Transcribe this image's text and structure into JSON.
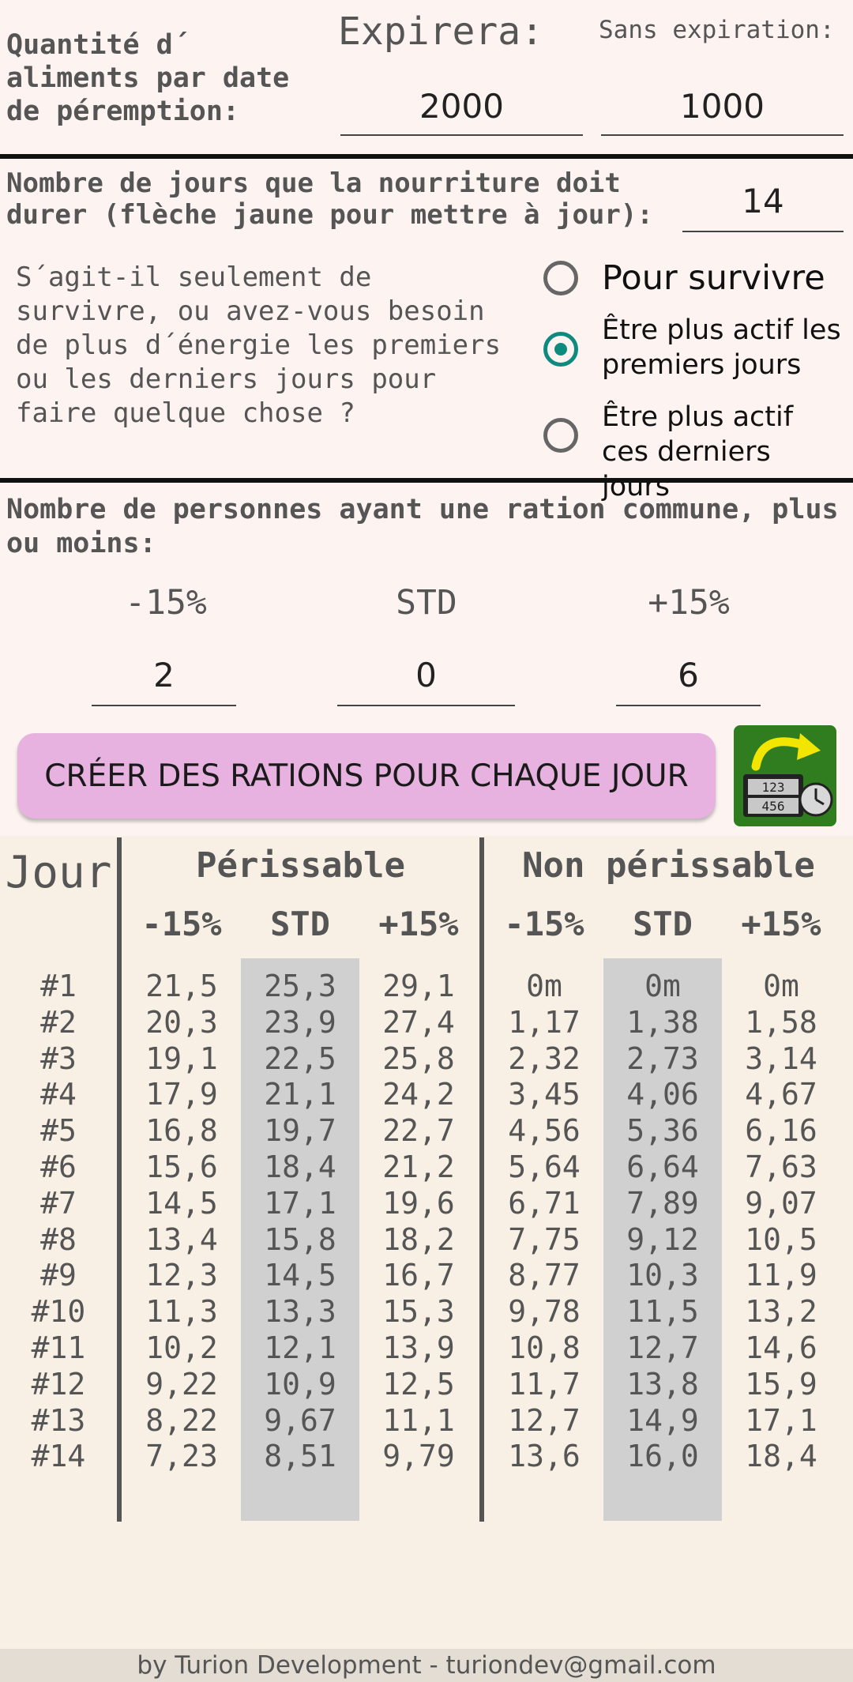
{
  "expiry": {
    "label": "Quantité d´ aliments par date de péremption:",
    "expires_label": "Expirera:",
    "no_expiry_label": "Sans expiration:",
    "expires_value": "2000",
    "no_expiry_value": "1000"
  },
  "days": {
    "label_line1": "Nombre de jours que la nourriture doit",
    "label_line2": "durer (flèche jaune pour mettre à jour):",
    "value": "14"
  },
  "activity": {
    "question": "S´agit-il seulement de survivre, ou avez-vous besoin de plus d´énergie les premiers ou les derniers jours pour faire quelque chose ?",
    "options": [
      {
        "label": "Pour survivre",
        "selected": false
      },
      {
        "label": "Être plus actif les premiers jours",
        "selected": true
      },
      {
        "label": "Être plus actif ces derniers jours",
        "selected": false
      }
    ]
  },
  "people": {
    "label": "Nombre de personnes ayant une ration commune, plus ou moins:",
    "minus_label": "-15%",
    "std_label": "STD",
    "plus_label": "+15%",
    "minus_value": "2",
    "std_value": "0",
    "plus_value": "6"
  },
  "create_button": "CRÉER DES RATIONS POUR CHAQUE JOUR",
  "update_icon": "calendar-clock-refresh-icon",
  "table": {
    "day_header": "Jour",
    "perishable_header": "Périssable",
    "non_perishable_header": "Non périssable",
    "sub_headers": [
      "-15%",
      "STD",
      "+15%",
      "-15%",
      "STD",
      "+15%"
    ],
    "rows": [
      [
        "#1",
        "21,5",
        "25,3",
        "29,1",
        "0m",
        "0m",
        "0m"
      ],
      [
        "#2",
        "20,3",
        "23,9",
        "27,4",
        "1,17",
        "1,38",
        "1,58"
      ],
      [
        "#3",
        "19,1",
        "22,5",
        "25,8",
        "2,32",
        "2,73",
        "3,14"
      ],
      [
        "#4",
        "17,9",
        "21,1",
        "24,2",
        "3,45",
        "4,06",
        "4,67"
      ],
      [
        "#5",
        "16,8",
        "19,7",
        "22,7",
        "4,56",
        "5,36",
        "6,16"
      ],
      [
        "#6",
        "15,6",
        "18,4",
        "21,2",
        "5,64",
        "6,64",
        "7,63"
      ],
      [
        "#7",
        "14,5",
        "17,1",
        "19,6",
        "6,71",
        "7,89",
        "9,07"
      ],
      [
        "#8",
        "13,4",
        "15,8",
        "18,2",
        "7,75",
        "9,12",
        "10,5"
      ],
      [
        "#9",
        "12,3",
        "14,5",
        "16,7",
        "8,77",
        "10,3",
        "11,9"
      ],
      [
        "#10",
        "11,3",
        "13,3",
        "15,3",
        "9,78",
        "11,5",
        "13,2"
      ],
      [
        "#11",
        "10,2",
        "12,1",
        "13,9",
        "10,8",
        "12,7",
        "14,6"
      ],
      [
        "#12",
        "9,22",
        "10,9",
        "12,5",
        "11,7",
        "13,8",
        "15,9"
      ],
      [
        "#13",
        "8,22",
        "9,67",
        "11,1",
        "12,7",
        "14,9",
        "17,1"
      ],
      [
        "#14",
        "7,23",
        "8,51",
        "9,79",
        "13,6",
        "16,0",
        "18,4"
      ]
    ]
  },
  "footer": "by Turion Development - turiondev@gmail.com"
}
